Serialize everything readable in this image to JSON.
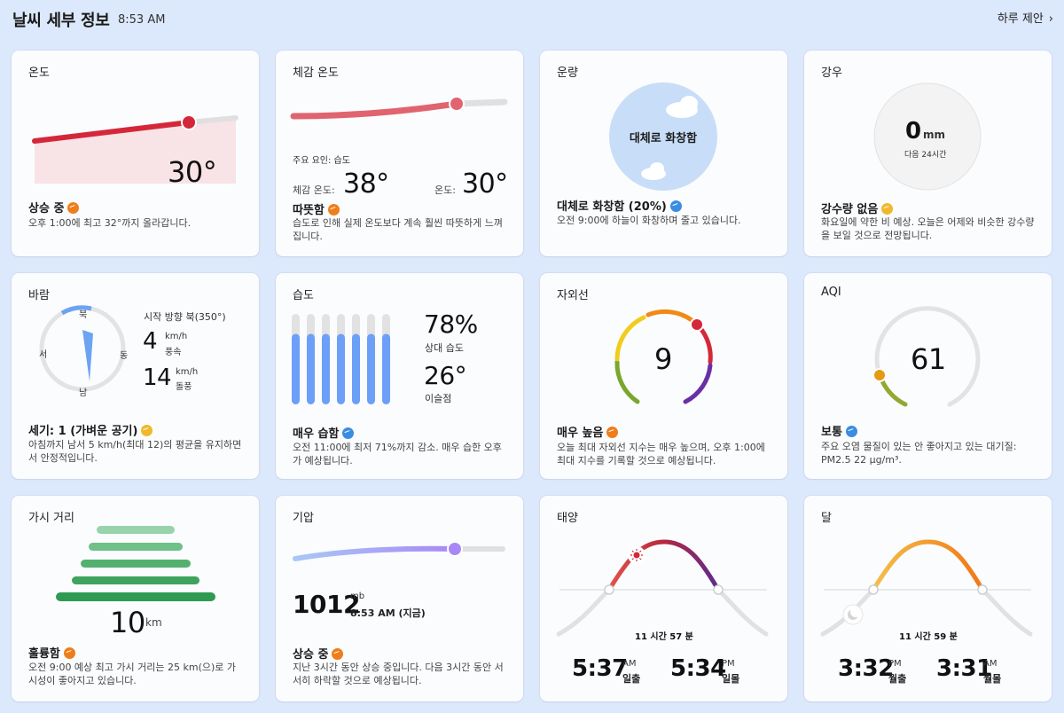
{
  "header": {
    "title": "날씨 세부 정보",
    "time": "8:53 AM",
    "day_link": "하루 제안"
  },
  "colors": {
    "background": "#dce8fb",
    "card": "#fbfcfe",
    "red": "#d4283a",
    "orange": "#ef7d1a",
    "blue": "#6c9ff7",
    "purple": "#a488f5",
    "green": "#37a05a"
  },
  "cards": {
    "temperature": {
      "title": "온도",
      "value": "30°",
      "status": "상승 중",
      "desc": "오후 1:00에 최고 32°까지 올라갑니다."
    },
    "feels_like": {
      "title": "체감 온도",
      "factor": "주요 요인: 습도",
      "feels_label": "체감 온도:",
      "feels_value": "38°",
      "temp_label": "온도:",
      "temp_value": "30°",
      "status": "따뜻함",
      "desc": "습도로 인해 실제 온도보다 계속 훨씬 따뜻하게 느껴집니다."
    },
    "cloud": {
      "title": "운량",
      "circle_text": "대체로 화창함",
      "status": "대체로 화창함 (20%)",
      "desc": "오전 9:00에 하늘이 화창하며 줄고 있습니다."
    },
    "precip": {
      "title": "강우",
      "value": "0",
      "unit": "mm",
      "sub": "다음 24시간",
      "status": "강수량 없음",
      "desc": "화요일에 약한 비 예상. 오늘은 어제와 비슷한 강수량을 보일 것으로 전망됩니다."
    },
    "wind": {
      "title": "바람",
      "n": "북",
      "s": "남",
      "w": "서",
      "e": "동",
      "direction_text": "시작 방향 북(350°)",
      "direction_deg": 350,
      "speed": "4",
      "speed_unit": "km/h",
      "speed_label": "풍속",
      "gust": "14",
      "gust_unit": "km/h",
      "gust_label": "돌풍",
      "status": "세기: 1 (가벼운 공기)",
      "desc": "아침까지 남서 5 km/h(최대 12)의 평균을 유지하면서 안정적입니다."
    },
    "humidity": {
      "title": "습도",
      "value": "78%",
      "value_label": "상대 습도",
      "dew": "26°",
      "dew_label": "이슬점",
      "bar_fraction": 0.78,
      "bars": 7,
      "status": "매우 습함",
      "desc": "오전 11:00에 최저 71%까지 감소. 매우 습한 오후가 예상됩니다."
    },
    "uv": {
      "title": "자외선",
      "value": "9",
      "status": "매우 높음",
      "desc": "오늘 최대 자외선 지수는 매우 높으며, 오후 1:00에 최대 지수를 기록할 것으로 예상됩니다."
    },
    "aqi": {
      "title": "AQI",
      "value": "61",
      "status": "보통",
      "desc": "주요 오염 물질이 있는 안 좋아지고 있는 대기질: PM2.5 22 μg/m³."
    },
    "visibility": {
      "title": "가시 거리",
      "value": "10",
      "unit": "km",
      "status": "훌륭함",
      "desc": "오전 9:00 예상 최고 가시 거리는 25 km(으)로 가시성이 좋아지고 있습니다."
    },
    "pressure": {
      "title": "기압",
      "value": "1012",
      "unit": "mb",
      "time": "8:53 AM (지금)",
      "status": "상승 중",
      "desc": "지난 3시간 동안 상승 중입니다. 다음 3시간 동안 서서히 하락할 것으로 예상됩니다."
    },
    "sun": {
      "title": "태양",
      "duration": "11 시간 57 분",
      "rise": "5:37",
      "rise_ampm": "AM",
      "rise_label": "일출",
      "set": "5:34",
      "set_ampm": "PM",
      "set_label": "일몰"
    },
    "moon": {
      "title": "달",
      "duration": "11 시간 59 분",
      "rise": "3:32",
      "rise_ampm": "PM",
      "rise_label": "월출",
      "set": "3:31",
      "set_ampm": "AM",
      "set_label": "월몰"
    }
  }
}
